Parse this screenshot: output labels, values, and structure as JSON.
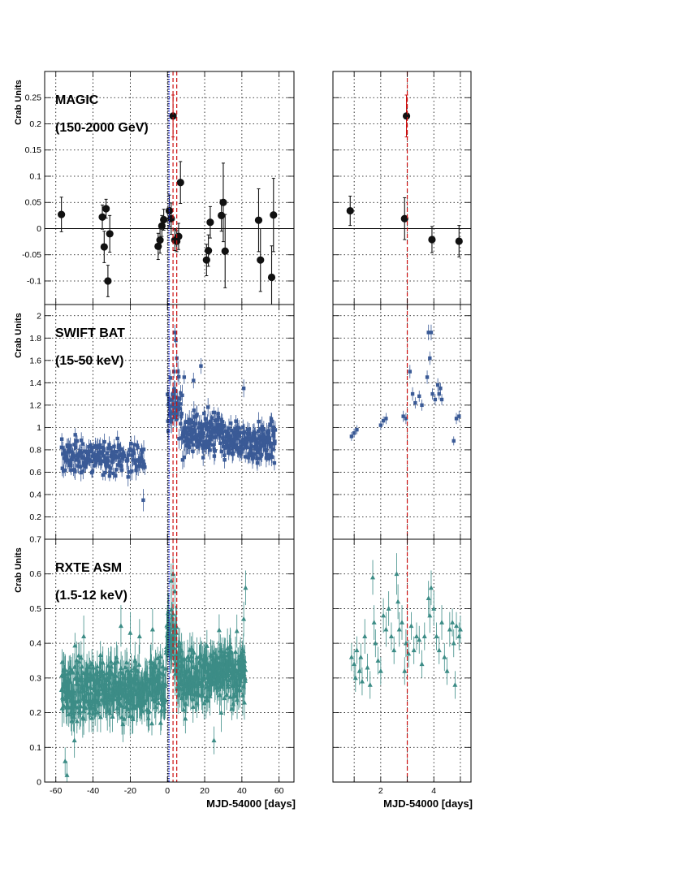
{
  "chart_data": [
    {
      "panel": "magic-main",
      "type": "scatter",
      "title_lines": [
        "MAGIC",
        "(150-2000 GeV)"
      ],
      "ylabel": "Crab Units",
      "xlabel": "",
      "xlim": [
        -66,
        68
      ],
      "ylim": [
        -0.145,
        0.3
      ],
      "xticks": [
        -60,
        -40,
        -20,
        0,
        20,
        40,
        60
      ],
      "yticks": [
        -0.1,
        -0.05,
        0,
        0.05,
        0.1,
        0.15,
        0.2,
        0.25
      ],
      "ytick_labels": [
        "-0.1",
        "-0.05",
        "0",
        "0.05",
        "0.1",
        "0.15",
        "0.2",
        "0.25"
      ],
      "zero_line": true,
      "marker": "circle",
      "color": "#111111",
      "highlight_color": "#cc1111",
      "points": [
        {
          "x": -57,
          "y": 0.027,
          "err": 0.033
        },
        {
          "x": -35,
          "y": 0.022,
          "err": 0.023
        },
        {
          "x": -34,
          "y": -0.035,
          "err": 0.03
        },
        {
          "x": -33,
          "y": 0.038,
          "err": 0.018
        },
        {
          "x": -32,
          "y": -0.1,
          "err": 0.03
        },
        {
          "x": -31,
          "y": -0.01,
          "err": 0.035
        },
        {
          "x": -5,
          "y": -0.034,
          "err": 0.025
        },
        {
          "x": -4,
          "y": -0.022,
          "err": 0.025
        },
        {
          "x": -3,
          "y": 0.005,
          "err": 0.02
        },
        {
          "x": -2,
          "y": 0.017,
          "err": 0.02
        },
        {
          "x": 1,
          "y": 0.034,
          "err": 0.03
        },
        {
          "x": 2,
          "y": 0.019,
          "err": 0.03
        },
        {
          "x": 3,
          "y": 0.215,
          "err": 0.04,
          "highlight": true
        },
        {
          "x": 4,
          "y": -0.022,
          "err": 0.02
        },
        {
          "x": 5,
          "y": -0.024,
          "err": 0.02
        },
        {
          "x": 6,
          "y": -0.015,
          "err": 0.025
        },
        {
          "x": 7,
          "y": 0.088,
          "err": 0.04
        },
        {
          "x": 21,
          "y": -0.06,
          "err": 0.03
        },
        {
          "x": 22,
          "y": -0.042,
          "err": 0.03
        },
        {
          "x": 23,
          "y": 0.012,
          "err": 0.03
        },
        {
          "x": 29,
          "y": 0.025,
          "err": 0.03
        },
        {
          "x": 30,
          "y": 0.05,
          "err": 0.075
        },
        {
          "x": 31,
          "y": -0.043,
          "err": 0.07
        },
        {
          "x": 49,
          "y": 0.016,
          "err": 0.06
        },
        {
          "x": 50,
          "y": -0.06,
          "err": 0.06
        },
        {
          "x": 56,
          "y": -0.093,
          "err": 0.06
        },
        {
          "x": 57,
          "y": 0.026,
          "err": 0.07
        }
      ],
      "vlines": [
        {
          "x": 0.3,
          "color": "#000000",
          "style": "dotted"
        },
        {
          "x": 0.9,
          "color": "#1a2bff",
          "style": "dotted"
        },
        {
          "x": 3.0,
          "color": "#cc1111",
          "style": "dashed"
        },
        {
          "x": 5.0,
          "color": "#cc1111",
          "style": "dashed"
        }
      ]
    },
    {
      "panel": "magic-zoom",
      "type": "scatter",
      "xlim": [
        0.2,
        5.4
      ],
      "ylim": [
        -0.145,
        0.3
      ],
      "zero_line": true,
      "marker": "circle",
      "color": "#111111",
      "highlight_color": "#cc1111",
      "points": [
        {
          "x": 0.85,
          "y": 0.034,
          "err": 0.028
        },
        {
          "x": 2.9,
          "y": 0.019,
          "err": 0.04
        },
        {
          "x": 2.97,
          "y": 0.215,
          "err": 0.04,
          "highlight": true
        },
        {
          "x": 3.93,
          "y": -0.021,
          "err": 0.025
        },
        {
          "x": 4.95,
          "y": -0.024,
          "err": 0.03
        }
      ],
      "vlines": [
        {
          "x": 3.0,
          "color": "#cc1111",
          "style": "dashed"
        }
      ]
    },
    {
      "panel": "bat-main",
      "type": "scatter",
      "title_lines": [
        "SWIFT BAT",
        "(15-50 keV)"
      ],
      "ylabel": "Crab Units",
      "xlim": [
        -66,
        68
      ],
      "ylim": [
        0.0,
        2.1
      ],
      "xticks": [
        -60,
        -40,
        -20,
        0,
        20,
        40,
        60
      ],
      "yticks": [
        0.2,
        0.4,
        0.6,
        0.8,
        1,
        1.2,
        1.4,
        1.6,
        1.8,
        2
      ],
      "ytick_labels": [
        "0.2",
        "0.4",
        "0.6",
        "0.8",
        "1",
        "1.2",
        "1.4",
        "1.6",
        "1.8",
        "2"
      ],
      "marker": "square",
      "color": "#3a5a96",
      "segments": [
        {
          "x0": -57,
          "x1": -23,
          "base": 0.74,
          "amp": 0.13,
          "err": 0.06,
          "n": 170
        },
        {
          "x0": -22,
          "x1": -12,
          "base": 0.72,
          "amp": 0.12,
          "err": 0.07,
          "n": 40
        },
        {
          "x0": 0,
          "x1": 8,
          "base": 1.18,
          "amp": 0.22,
          "err": 0.08,
          "n": 45
        },
        {
          "x0": 8,
          "x1": 29,
          "base": 0.95,
          "amp": 0.16,
          "err": 0.07,
          "n": 150
        },
        {
          "x0": 29,
          "x1": 58,
          "base": 0.87,
          "amp": 0.14,
          "err": 0.07,
          "n": 190
        }
      ],
      "points": [
        {
          "x": -13,
          "y": 0.35,
          "err": 0.1
        },
        {
          "x": 4,
          "y": 1.85,
          "err": 0.07
        },
        {
          "x": 4.5,
          "y": 1.78,
          "err": 0.06
        },
        {
          "x": 5,
          "y": 1.62,
          "err": 0.06
        },
        {
          "x": 3.5,
          "y": 1.5,
          "err": 0.06
        },
        {
          "x": 18,
          "y": 1.55,
          "err": 0.07
        },
        {
          "x": 14,
          "y": 1.42,
          "err": 0.07
        },
        {
          "x": 41,
          "y": 1.35,
          "err": 0.08
        },
        {
          "x": 9,
          "y": 1.45,
          "err": 0.06
        }
      ],
      "vlines": [
        {
          "x": 0.3,
          "color": "#000000",
          "style": "dotted"
        },
        {
          "x": 0.9,
          "color": "#1a2bff",
          "style": "dotted"
        },
        {
          "x": 3.0,
          "color": "#cc1111",
          "style": "dashed"
        },
        {
          "x": 5.0,
          "color": "#cc1111",
          "style": "dashed"
        }
      ]
    },
    {
      "panel": "bat-zoom",
      "type": "scatter",
      "xlim": [
        0.2,
        5.4
      ],
      "ylim": [
        0.0,
        2.1
      ],
      "marker": "square",
      "color": "#3a5a96",
      "points": [
        {
          "x": 0.9,
          "y": 0.92,
          "err": 0.04
        },
        {
          "x": 1.0,
          "y": 0.95,
          "err": 0.04
        },
        {
          "x": 1.1,
          "y": 0.98,
          "err": 0.04
        },
        {
          "x": 2.0,
          "y": 1.02,
          "err": 0.04
        },
        {
          "x": 2.1,
          "y": 1.06,
          "err": 0.04
        },
        {
          "x": 2.2,
          "y": 1.08,
          "err": 0.05
        },
        {
          "x": 2.85,
          "y": 1.1,
          "err": 0.05
        },
        {
          "x": 2.95,
          "y": 1.08,
          "err": 0.05
        },
        {
          "x": 3.1,
          "y": 1.5,
          "err": 0.06
        },
        {
          "x": 3.2,
          "y": 1.3,
          "err": 0.06
        },
        {
          "x": 3.3,
          "y": 1.22,
          "err": 0.05
        },
        {
          "x": 3.45,
          "y": 1.28,
          "err": 0.05
        },
        {
          "x": 3.55,
          "y": 1.2,
          "err": 0.05
        },
        {
          "x": 3.75,
          "y": 1.45,
          "err": 0.06
        },
        {
          "x": 3.8,
          "y": 1.85,
          "err": 0.07
        },
        {
          "x": 3.85,
          "y": 1.62,
          "err": 0.06
        },
        {
          "x": 3.9,
          "y": 1.85,
          "err": 0.07
        },
        {
          "x": 3.95,
          "y": 1.3,
          "err": 0.05
        },
        {
          "x": 4.05,
          "y": 1.25,
          "err": 0.05
        },
        {
          "x": 4.15,
          "y": 1.38,
          "err": 0.06
        },
        {
          "x": 4.2,
          "y": 1.3,
          "err": 0.05
        },
        {
          "x": 4.25,
          "y": 1.35,
          "err": 0.05
        },
        {
          "x": 4.3,
          "y": 1.25,
          "err": 0.05
        },
        {
          "x": 4.75,
          "y": 0.88,
          "err": 0.04
        },
        {
          "x": 4.85,
          "y": 1.08,
          "err": 0.05
        },
        {
          "x": 4.95,
          "y": 1.1,
          "err": 0.05
        }
      ],
      "vlines": [
        {
          "x": 3.0,
          "color": "#cc1111",
          "style": "dashed"
        }
      ]
    },
    {
      "panel": "asm-main",
      "type": "scatter",
      "title_lines": [
        "RXTE ASM",
        "(1.5-12 keV)"
      ],
      "ylabel": "Crab Units",
      "xlabel": "MJD-54000 [days]",
      "xlim": [
        -66,
        68
      ],
      "ylim": [
        0.0,
        0.7
      ],
      "xticks": [
        -60,
        -40,
        -20,
        0,
        20,
        40,
        60
      ],
      "xtick_labels": [
        "-60",
        "-40",
        "-20",
        "0",
        "20",
        "40",
        "60"
      ],
      "yticks": [
        0,
        0.1,
        0.2,
        0.3,
        0.4,
        0.5,
        0.6,
        0.7
      ],
      "ytick_labels": [
        "0",
        "0.1",
        "0.2",
        "0.3",
        "0.4",
        "0.5",
        "0.6",
        "0.7"
      ],
      "marker": "triangle",
      "color": "#3c8c86",
      "segments": [
        {
          "x0": -57,
          "x1": -1,
          "base": 0.27,
          "amp": 0.07,
          "err": 0.045,
          "n": 420
        },
        {
          "x0": -1,
          "x1": 5,
          "base": 0.42,
          "amp": 0.09,
          "err": 0.05,
          "n": 40
        },
        {
          "x0": 5,
          "x1": 42,
          "base": 0.31,
          "amp": 0.07,
          "err": 0.045,
          "n": 300
        }
      ],
      "points": [
        {
          "x": -55,
          "y": 0.06,
          "err": 0.04
        },
        {
          "x": -54,
          "y": 0.02,
          "err": 0.04
        },
        {
          "x": -50,
          "y": 0.12,
          "err": 0.05
        },
        {
          "x": -25,
          "y": 0.45,
          "err": 0.06
        },
        {
          "x": -20,
          "y": 0.43,
          "err": 0.06
        },
        {
          "x": -15,
          "y": 0.42,
          "err": 0.05
        },
        {
          "x": 3,
          "y": 0.6,
          "err": 0.05
        },
        {
          "x": 2,
          "y": 0.58,
          "err": 0.05
        },
        {
          "x": 4,
          "y": 0.55,
          "err": 0.05
        },
        {
          "x": 25,
          "y": 0.12,
          "err": 0.04
        },
        {
          "x": 42,
          "y": 0.56,
          "err": 0.05
        },
        {
          "x": 41,
          "y": 0.47,
          "err": 0.05
        },
        {
          "x": -45,
          "y": 0.42,
          "err": 0.06
        },
        {
          "x": -8,
          "y": 0.44,
          "err": 0.06
        }
      ],
      "vlines": [
        {
          "x": 0.3,
          "color": "#000000",
          "style": "dotted"
        },
        {
          "x": 0.9,
          "color": "#1a2bff",
          "style": "dotted"
        },
        {
          "x": 3.0,
          "color": "#cc1111",
          "style": "dashed"
        },
        {
          "x": 5.0,
          "color": "#cc1111",
          "style": "dashed"
        }
      ]
    },
    {
      "panel": "asm-zoom",
      "type": "scatter",
      "xlabel": "MJD-54000 [days]",
      "xlim": [
        0.2,
        5.4
      ],
      "ylim": [
        0.0,
        0.7
      ],
      "xticks": [
        2,
        4
      ],
      "xtick_labels": [
        "2",
        "4"
      ],
      "marker": "triangle",
      "color": "#3c8c86",
      "points": [
        {
          "x": 0.9,
          "y": 0.36,
          "err": 0.04
        },
        {
          "x": 1.0,
          "y": 0.34,
          "err": 0.04
        },
        {
          "x": 1.05,
          "y": 0.3,
          "err": 0.04
        },
        {
          "x": 1.1,
          "y": 0.38,
          "err": 0.04
        },
        {
          "x": 1.2,
          "y": 0.32,
          "err": 0.04
        },
        {
          "x": 1.25,
          "y": 0.36,
          "err": 0.04
        },
        {
          "x": 1.3,
          "y": 0.29,
          "err": 0.04
        },
        {
          "x": 1.4,
          "y": 0.42,
          "err": 0.05
        },
        {
          "x": 1.5,
          "y": 0.33,
          "err": 0.04
        },
        {
          "x": 1.6,
          "y": 0.28,
          "err": 0.04
        },
        {
          "x": 1.7,
          "y": 0.59,
          "err": 0.05
        },
        {
          "x": 1.75,
          "y": 0.46,
          "err": 0.05
        },
        {
          "x": 1.8,
          "y": 0.4,
          "err": 0.04
        },
        {
          "x": 1.9,
          "y": 0.35,
          "err": 0.04
        },
        {
          "x": 2.0,
          "y": 0.32,
          "err": 0.04
        },
        {
          "x": 2.1,
          "y": 0.48,
          "err": 0.05
        },
        {
          "x": 2.2,
          "y": 0.44,
          "err": 0.05
        },
        {
          "x": 2.3,
          "y": 0.5,
          "err": 0.05
        },
        {
          "x": 2.4,
          "y": 0.42,
          "err": 0.04
        },
        {
          "x": 2.5,
          "y": 0.38,
          "err": 0.04
        },
        {
          "x": 2.6,
          "y": 0.6,
          "err": 0.06
        },
        {
          "x": 2.65,
          "y": 0.52,
          "err": 0.05
        },
        {
          "x": 2.7,
          "y": 0.44,
          "err": 0.05
        },
        {
          "x": 2.8,
          "y": 0.46,
          "err": 0.05
        },
        {
          "x": 2.9,
          "y": 0.32,
          "err": 0.04
        },
        {
          "x": 2.95,
          "y": 0.4,
          "err": 0.04
        },
        {
          "x": 3.05,
          "y": 0.37,
          "err": 0.04
        },
        {
          "x": 3.15,
          "y": 0.45,
          "err": 0.04
        },
        {
          "x": 3.25,
          "y": 0.38,
          "err": 0.04
        },
        {
          "x": 3.35,
          "y": 0.42,
          "err": 0.04
        },
        {
          "x": 3.45,
          "y": 0.41,
          "err": 0.04
        },
        {
          "x": 3.55,
          "y": 0.34,
          "err": 0.04
        },
        {
          "x": 3.65,
          "y": 0.42,
          "err": 0.04
        },
        {
          "x": 3.8,
          "y": 0.53,
          "err": 0.05
        },
        {
          "x": 3.85,
          "y": 0.48,
          "err": 0.05
        },
        {
          "x": 3.9,
          "y": 0.56,
          "err": 0.05
        },
        {
          "x": 4.0,
          "y": 0.5,
          "err": 0.05
        },
        {
          "x": 4.1,
          "y": 0.42,
          "err": 0.04
        },
        {
          "x": 4.2,
          "y": 0.38,
          "err": 0.04
        },
        {
          "x": 4.3,
          "y": 0.46,
          "err": 0.05
        },
        {
          "x": 4.4,
          "y": 0.36,
          "err": 0.04
        },
        {
          "x": 4.5,
          "y": 0.32,
          "err": 0.04
        },
        {
          "x": 4.6,
          "y": 0.44,
          "err": 0.05
        },
        {
          "x": 4.7,
          "y": 0.46,
          "err": 0.04
        },
        {
          "x": 4.75,
          "y": 0.4,
          "err": 0.04
        },
        {
          "x": 4.8,
          "y": 0.28,
          "err": 0.04
        },
        {
          "x": 4.85,
          "y": 0.45,
          "err": 0.04
        },
        {
          "x": 4.95,
          "y": 0.42,
          "err": 0.04
        },
        {
          "x": 5.0,
          "y": 0.44,
          "err": 0.04
        }
      ],
      "vlines": [
        {
          "x": 3.0,
          "color": "#cc1111",
          "style": "dashed"
        }
      ]
    }
  ]
}
